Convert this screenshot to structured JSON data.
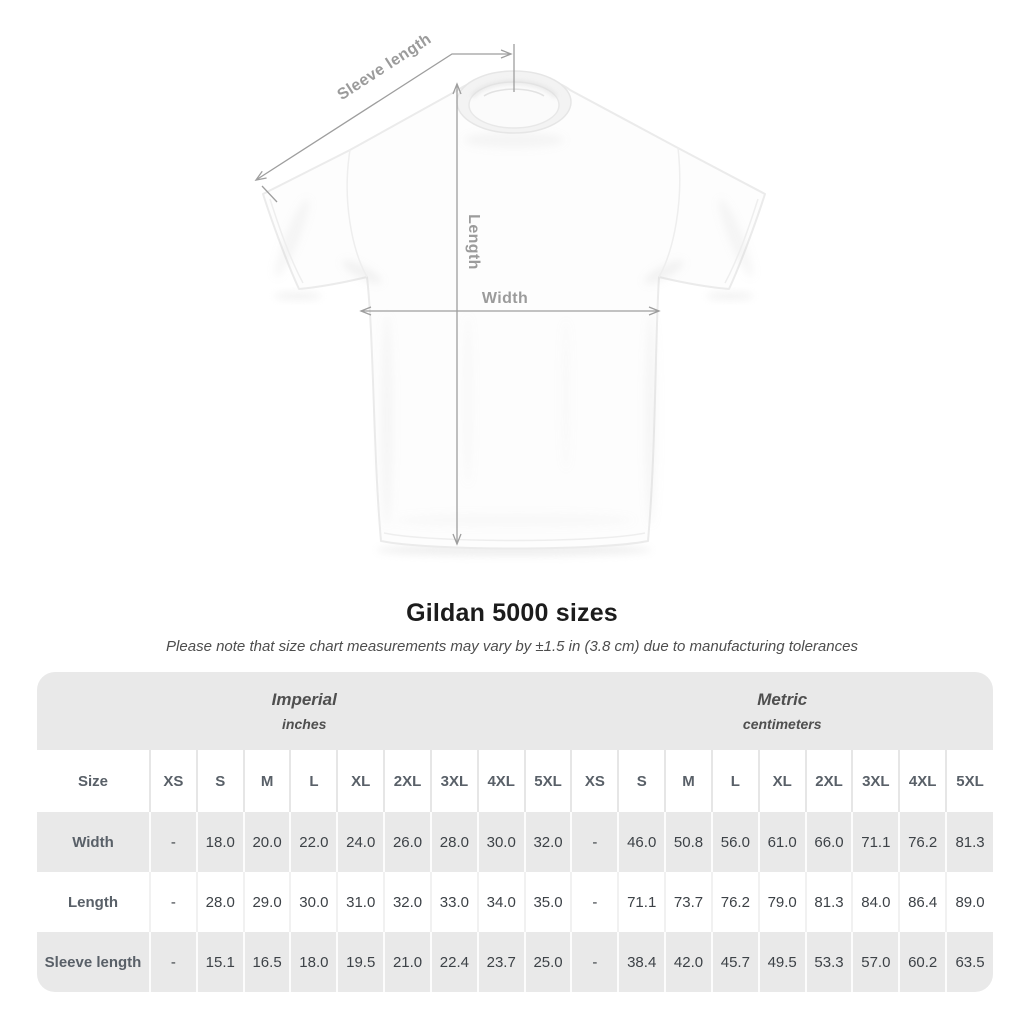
{
  "diagram": {
    "labels": {
      "sleeve_length": "Sleeve length",
      "length": "Length",
      "width": "Width"
    },
    "annotation_color": "#9e9e9e"
  },
  "title": "Gildan 5000 sizes",
  "subtitle": "Please note that size chart measurements may vary by ±1.5 in (3.8 cm) due to manufacturing tolerances",
  "table": {
    "groups": [
      {
        "label": "Imperial",
        "sublabel": "inches"
      },
      {
        "label": "Metric",
        "sublabel": "centimeters"
      }
    ],
    "size_header": "Size",
    "sizes": [
      "XS",
      "S",
      "M",
      "L",
      "XL",
      "2XL",
      "3XL",
      "4XL",
      "5XL"
    ],
    "rows": [
      {
        "label": "Width",
        "imperial": [
          "-",
          "18.0",
          "20.0",
          "22.0",
          "24.0",
          "26.0",
          "28.0",
          "30.0",
          "32.0"
        ],
        "metric": [
          "-",
          "46.0",
          "50.8",
          "56.0",
          "61.0",
          "66.0",
          "71.1",
          "76.2",
          "81.3"
        ]
      },
      {
        "label": "Length",
        "imperial": [
          "-",
          "28.0",
          "29.0",
          "30.0",
          "31.0",
          "32.0",
          "33.0",
          "34.0",
          "35.0"
        ],
        "metric": [
          "-",
          "71.1",
          "73.7",
          "76.2",
          "79.0",
          "81.3",
          "84.0",
          "86.4",
          "89.0"
        ]
      },
      {
        "label": "Sleeve length",
        "imperial": [
          "-",
          "15.1",
          "16.5",
          "18.0",
          "19.5",
          "21.0",
          "22.4",
          "23.7",
          "25.0"
        ],
        "metric": [
          "-",
          "38.4",
          "42.0",
          "45.7",
          "49.5",
          "53.3",
          "57.0",
          "60.2",
          "63.5"
        ]
      }
    ],
    "stripe_color": "#e9e9e9"
  }
}
